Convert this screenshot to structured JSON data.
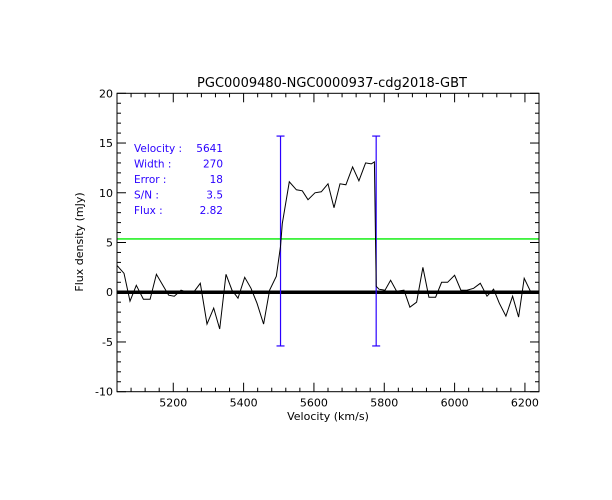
{
  "chart_data": {
    "type": "line",
    "title": "PGC0009480-NGC0000937-cdg2018-GBT",
    "xlabel": "Velocity (km/s)",
    "ylabel": "Flux density (mJy)",
    "xlim": [
      5040,
      6240
    ],
    "ylim": [
      -10,
      20
    ],
    "xticks": [
      5200,
      5400,
      5600,
      5800,
      6000,
      6200
    ],
    "yticks": [
      -10,
      -5,
      0,
      5,
      10,
      15,
      20
    ],
    "grid": false,
    "series": [
      {
        "color": "#000000",
        "x": [
          5040,
          5060,
          5077,
          5095,
          5115,
          5134,
          5152,
          5172,
          5187,
          5203,
          5222,
          5241,
          5260,
          5277,
          5296,
          5315,
          5332,
          5350,
          5367,
          5384,
          5403,
          5421,
          5438,
          5457,
          5474,
          5493,
          5505,
          5510,
          5530,
          5550,
          5567,
          5583,
          5603,
          5621,
          5640,
          5657,
          5674,
          5691,
          5710,
          5728,
          5747,
          5763,
          5772,
          5777,
          5785,
          5802,
          5818,
          5835,
          5856,
          5873,
          5892,
          5910,
          5927,
          5946,
          5963,
          5980,
          6000,
          6018,
          6035,
          6054,
          6073,
          6092,
          6111,
          6127,
          6146,
          6165,
          6182,
          6198,
          6217,
          6240
        ],
        "y": [
          2.7,
          1.9,
          -0.9,
          0.7,
          -0.7,
          -0.7,
          1.8,
          0.6,
          -0.3,
          -0.4,
          0.2,
          0.0,
          0.1,
          0.9,
          -3.2,
          -1.6,
          -3.7,
          1.8,
          0.2,
          -0.6,
          1.5,
          0.4,
          -1.1,
          -3.2,
          0.2,
          1.6,
          4.6,
          6.9,
          11.1,
          10.3,
          10.2,
          9.3,
          10.0,
          10.1,
          10.9,
          8.5,
          10.9,
          10.8,
          12.6,
          11.2,
          13.0,
          12.9,
          13.1,
          0.6,
          0.3,
          0.2,
          1.2,
          0.1,
          0.2,
          -1.5,
          -1.0,
          2.5,
          -0.5,
          -0.5,
          1.0,
          1.0,
          1.7,
          0.2,
          0.2,
          0.4,
          0.9,
          -0.4,
          0.3,
          -1.1,
          -2.4,
          -0.4,
          -2.5,
          1.4,
          0.0,
          0.0
        ]
      }
    ],
    "zero_line": {
      "y": 0,
      "color": "#000000"
    },
    "threshold_line": {
      "y": 5.36,
      "color": "#00ee00"
    },
    "velocity_markers": {
      "x": [
        5505,
        5777
      ],
      "ymin": -5.4,
      "ymax": 15.7,
      "color": "#2a00ff"
    },
    "annotations": [
      {
        "label": "Velocity :",
        "value": "5641"
      },
      {
        "label": "Width :",
        "value": "270"
      },
      {
        "label": "Error :",
        "value": "18"
      },
      {
        "label": "S/N :",
        "value": "3.5"
      },
      {
        "label": "Flux :",
        "value": "2.82"
      }
    ],
    "annotation_color": "#2a00ff"
  }
}
